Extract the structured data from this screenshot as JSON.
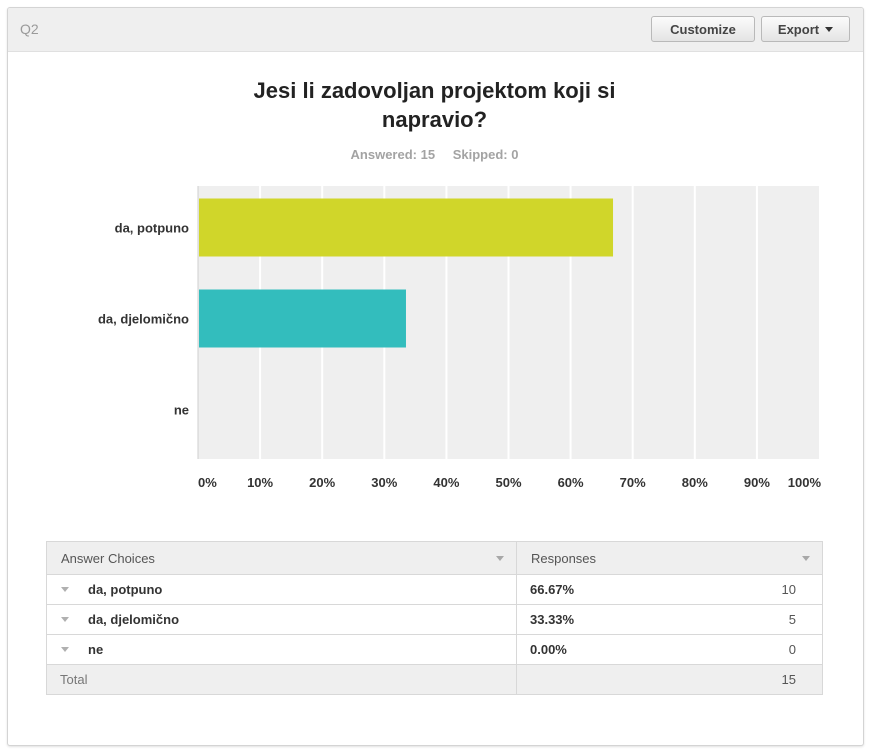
{
  "header": {
    "question_label": "Q2",
    "customize_label": "Customize",
    "export_label": "Export"
  },
  "chart_data": {
    "type": "bar",
    "orientation": "horizontal",
    "title": "Jesi li zadovoljan projektom koji si napravio?",
    "answered_text": "Answered: 15",
    "skipped_text": "Skipped: 0",
    "categories": [
      "da, potpuno",
      "da, djelomično",
      "ne"
    ],
    "values": [
      66.67,
      33.33,
      0
    ],
    "colors": [
      "#d0d62a",
      "#33bdbd",
      "#b8b8b8"
    ],
    "xlim": [
      0,
      100
    ],
    "xticks": [
      "0%",
      "10%",
      "20%",
      "30%",
      "40%",
      "50%",
      "60%",
      "70%",
      "80%",
      "90%",
      "100%"
    ],
    "grid": true,
    "legend": "none",
    "plot_background": "#efefef"
  },
  "table": {
    "col_choices": "Answer Choices",
    "col_responses": "Responses",
    "rows": [
      {
        "choice": "da, potpuno",
        "percent": "66.67%",
        "count": "10"
      },
      {
        "choice": "da, djelomično",
        "percent": "33.33%",
        "count": "5"
      },
      {
        "choice": "ne",
        "percent": "0.00%",
        "count": "0"
      }
    ],
    "total_label": "Total",
    "total_count": "15"
  }
}
